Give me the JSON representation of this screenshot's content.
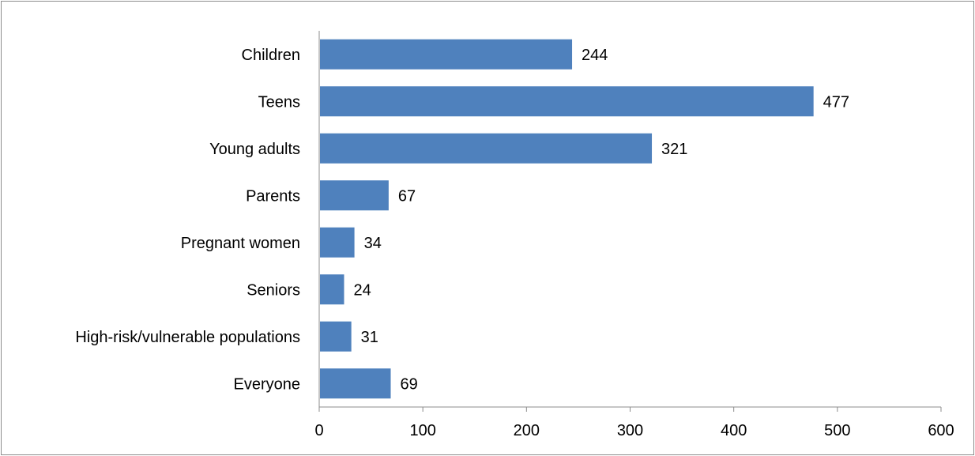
{
  "chart_data": {
    "type": "bar",
    "orientation": "horizontal",
    "categories": [
      "Children",
      "Teens",
      "Young adults",
      "Parents",
      "Pregnant women",
      "Seniors",
      "High-risk/vulnerable populations",
      "Everyone"
    ],
    "values": [
      244,
      477,
      321,
      67,
      34,
      24,
      31,
      69
    ],
    "xlim": [
      0,
      600
    ],
    "xticks": [
      0,
      100,
      200,
      300,
      400,
      500,
      600
    ],
    "grid": false,
    "legend": "none",
    "bar_color": "#4f81bd",
    "data_labels": true
  }
}
